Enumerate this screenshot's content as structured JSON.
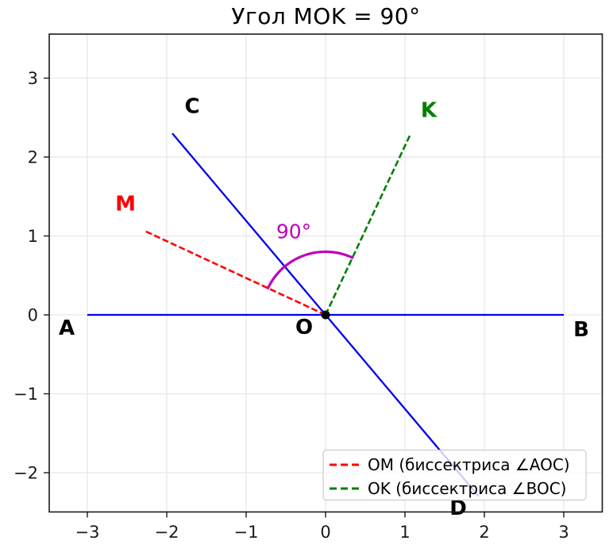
{
  "chart_data": {
    "type": "line",
    "title": "Угол MOK = 90°",
    "xlabel": "",
    "ylabel": "",
    "xlim": [
      -3.48,
      3.48
    ],
    "ylim": [
      -2.49,
      3.57
    ],
    "grid": true,
    "xticks": {
      "values": [
        -3,
        -2,
        -1,
        0,
        1,
        2,
        3
      ],
      "labels": [
        "−3",
        "−2",
        "−1",
        "0",
        "1",
        "2",
        "3"
      ]
    },
    "yticks": {
      "values": [
        -2,
        -1,
        0,
        1,
        2,
        3
      ],
      "labels": [
        "−2",
        "−1",
        "0",
        "1",
        "2",
        "3"
      ]
    },
    "series": [
      {
        "id": "AB",
        "desc": "ray AB through origin",
        "points": [
          [
            -3,
            0
          ],
          [
            3,
            0
          ]
        ],
        "color": "#0000ee",
        "style": "solid",
        "width": 2.3
      },
      {
        "id": "CD",
        "desc": "ray CD through origin",
        "points": [
          [
            -1.93,
            2.3
          ],
          [
            1.93,
            -2.3
          ]
        ],
        "color": "#0000ee",
        "style": "solid",
        "width": 2.3
      },
      {
        "id": "OM",
        "desc": "bisector of angle AOC",
        "points": [
          [
            0,
            0
          ],
          [
            -2.27,
            1.06
          ]
        ],
        "color": "#ff0000",
        "style": "dashed",
        "width": 2.6
      },
      {
        "id": "OK",
        "desc": "bisector of angle BOC",
        "points": [
          [
            0,
            0
          ],
          [
            1.06,
            2.27
          ]
        ],
        "color": "#008000",
        "style": "dashed",
        "width": 2.6
      }
    ],
    "origin_point": {
      "x": 0,
      "y": 0,
      "color": "#000000",
      "radius_px": 5.5
    },
    "angle_arc": {
      "cx": 0,
      "cy": 0,
      "radius": 0.8,
      "start_deg": 65,
      "end_deg": 155,
      "color": "#bf00bf",
      "width": 3.2,
      "label": "90°",
      "label_x": -0.4,
      "label_y": 1.06
    },
    "point_labels": [
      {
        "text": "A",
        "x": -3.26,
        "y": -0.16,
        "color": "#000000"
      },
      {
        "text": "B",
        "x": 3.22,
        "y": -0.18,
        "color": "#000000"
      },
      {
        "text": "C",
        "x": -1.68,
        "y": 2.65,
        "color": "#000000"
      },
      {
        "text": "D",
        "x": 1.67,
        "y": -2.44,
        "color": "#000000"
      },
      {
        "text": "O",
        "x": -0.27,
        "y": -0.15,
        "color": "#000000"
      },
      {
        "text": "M",
        "x": -2.52,
        "y": 1.41,
        "color": "#ff0000"
      },
      {
        "text": "K",
        "x": 1.3,
        "y": 2.6,
        "color": "#008000"
      }
    ],
    "legend": {
      "position": "lower right",
      "entries": [
        {
          "label": "OM (биссектриса ∠AOC)",
          "color": "#ff0000",
          "style": "dashed"
        },
        {
          "label": "OK (биссектриса ∠BOC)",
          "color": "#008000",
          "style": "dashed"
        }
      ]
    },
    "style_colors": {
      "grid": "#e8e8e8",
      "spine": "#1a1a1a",
      "tick_label": "#1a1a1a",
      "legend_border": "#cccccc"
    }
  }
}
